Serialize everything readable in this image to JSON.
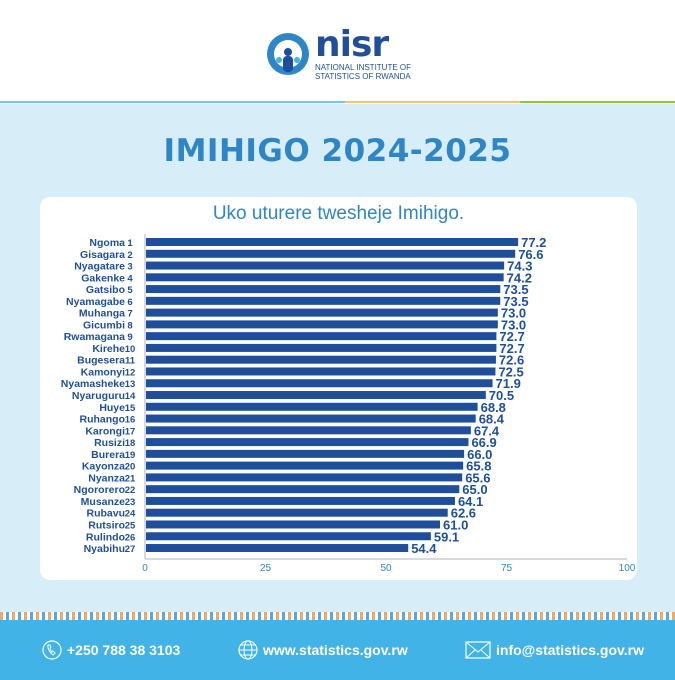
{
  "header": {
    "logo_word": "nisr",
    "logo_sub": "NATIONAL INSTITUTE OF STATISTICS OF RWANDA",
    "colors": {
      "brand": "#1f4f9b",
      "accent": "#2e86c6"
    }
  },
  "title": "IMIHIGO 2024-2025",
  "chart_data": {
    "type": "bar",
    "orientation": "horizontal",
    "title": "Uko uturere twesheje Imihigo.",
    "categories": [
      "Ngoma",
      "Gisagara",
      "Nyagatare",
      "Gakenke",
      "Gatsibo",
      "Nyamagabe",
      "Muhanga",
      "Gicumbi",
      "Rwamagana",
      "Kirehe",
      "Bugesera",
      "Kamonyi",
      "Nyamasheke",
      "Nyaruguru",
      "Huye",
      "Ruhango",
      "Karongi",
      "Rusizi",
      "Burera",
      "Kayonza",
      "Nyanza",
      "Ngororero",
      "Musanze",
      "Rubavu",
      "Rutsiro",
      "Rulindo",
      "Nyabihu"
    ],
    "ranks": [
      "1",
      "2",
      "3",
      "4",
      "5",
      "6",
      "7",
      "8",
      "9",
      "10",
      "11",
      "12",
      "13",
      "14",
      "15",
      "16",
      "17",
      "18",
      "19",
      "20",
      "21",
      "22",
      "23",
      "24",
      "25",
      "26",
      "27"
    ],
    "values": [
      77.2,
      76.6,
      74.3,
      74.2,
      73.5,
      73.5,
      73.0,
      73.0,
      72.7,
      72.7,
      72.6,
      72.5,
      71.9,
      70.5,
      68.8,
      68.4,
      67.4,
      66.9,
      66.0,
      65.8,
      65.6,
      65.0,
      64.1,
      62.6,
      61.0,
      59.1,
      54.4
    ],
    "value_labels": [
      "77.2",
      "76.6",
      "74.3",
      "74.2",
      "73.5",
      "73.5",
      "73.0",
      "73.0",
      "72.7",
      "72.7",
      "72.6",
      "72.5",
      "71.9",
      "70.5",
      "68.8",
      "68.4",
      "67.4",
      "66.9",
      "66.0",
      "65.8",
      "65.6",
      "65.0",
      "64.1",
      "62.6",
      "61.0",
      "59.1",
      "54.4"
    ],
    "xlim": [
      0,
      100
    ],
    "xticks": [
      "0",
      "25",
      "50",
      "75",
      "100"
    ],
    "grid": false,
    "bar_color": "#1f4f9b"
  },
  "footer": {
    "phone": "+250 788 38 3103",
    "website": "www.statistics.gov.rw",
    "email": "info@statistics.gov.rw"
  }
}
